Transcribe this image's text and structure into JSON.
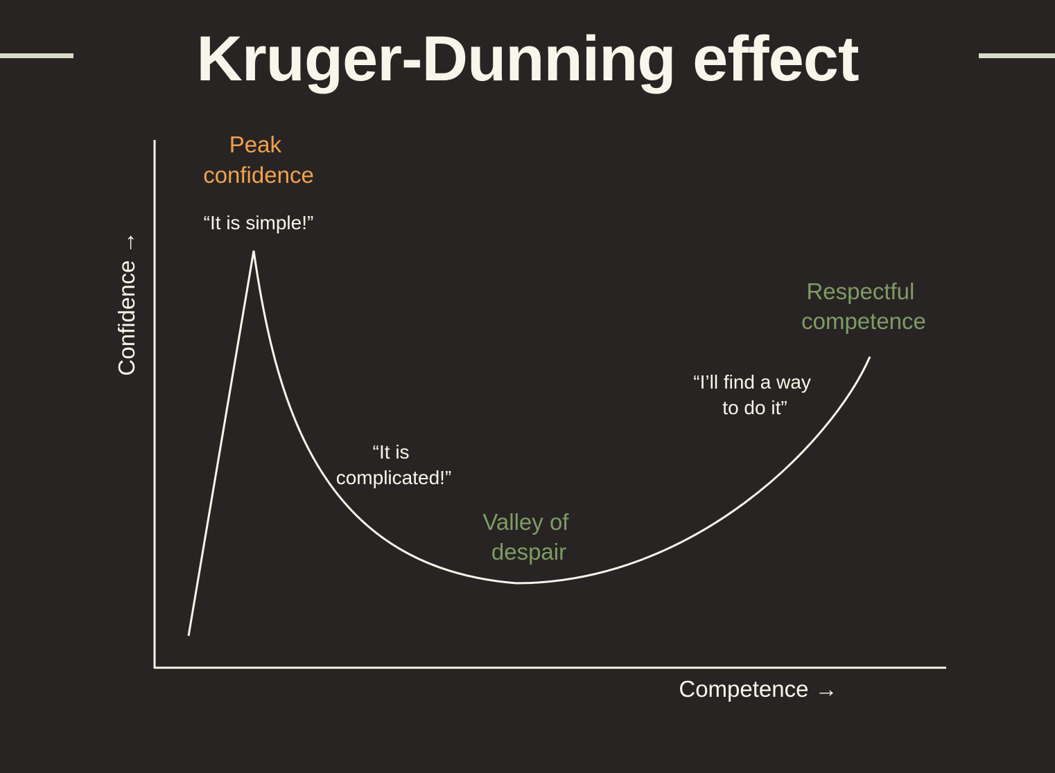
{
  "title": "Kruger-Dunning effect",
  "axes": {
    "y_label": "Confidence →",
    "x_label": "Competence →"
  },
  "labels": {
    "peak": [
      "Peak",
      "confidence"
    ],
    "peak_quote": "“It is simple!”",
    "complicated_quote": [
      "“It is",
      "complicated!”"
    ],
    "valley": [
      "Valley of",
      "despair"
    ],
    "find_way_quote": [
      "“I’ll find a way",
      "to do it”"
    ],
    "respectful": [
      "Respectful",
      "competence"
    ]
  },
  "colors": {
    "background": "#282423",
    "foreground": "#f8f6ea",
    "peak": "#efa24e",
    "green": "#7e9c66",
    "deco": "#d7dcc4"
  }
}
